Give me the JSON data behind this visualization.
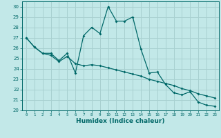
{
  "xlabel": "Humidex (Indice chaleur)",
  "ylabel": "",
  "bg_color": "#c2e8e8",
  "grid_color": "#a8d0d0",
  "line_color": "#006868",
  "xlim": [
    -0.5,
    23.5
  ],
  "ylim": [
    20,
    30.5
  ],
  "yticks": [
    20,
    21,
    22,
    23,
    24,
    25,
    26,
    27,
    28,
    29,
    30
  ],
  "xticks": [
    0,
    1,
    2,
    3,
    4,
    5,
    6,
    7,
    8,
    9,
    10,
    11,
    12,
    13,
    14,
    15,
    16,
    17,
    18,
    19,
    20,
    21,
    22,
    23
  ],
  "series1_x": [
    0,
    1,
    2,
    3,
    4,
    5,
    6,
    7,
    8,
    9,
    10,
    11,
    12,
    13,
    14,
    15,
    16,
    17,
    18,
    19,
    20,
    21,
    22,
    23
  ],
  "series1_y": [
    27.0,
    26.1,
    25.5,
    25.5,
    24.8,
    25.5,
    23.6,
    27.2,
    28.0,
    27.4,
    30.0,
    28.6,
    28.6,
    29.0,
    25.9,
    23.6,
    23.7,
    22.5,
    21.7,
    21.5,
    21.8,
    20.8,
    20.5,
    20.4
  ],
  "series2_x": [
    0,
    1,
    2,
    3,
    4,
    5,
    6,
    7,
    8,
    9,
    10,
    11,
    12,
    13,
    14,
    15,
    16,
    17,
    18,
    19,
    20,
    21,
    22,
    23
  ],
  "series2_y": [
    27.0,
    26.1,
    25.5,
    25.3,
    24.7,
    25.2,
    24.5,
    24.3,
    24.4,
    24.3,
    24.1,
    23.9,
    23.7,
    23.5,
    23.3,
    23.0,
    22.8,
    22.6,
    22.4,
    22.1,
    21.9,
    21.6,
    21.4,
    21.2
  ]
}
